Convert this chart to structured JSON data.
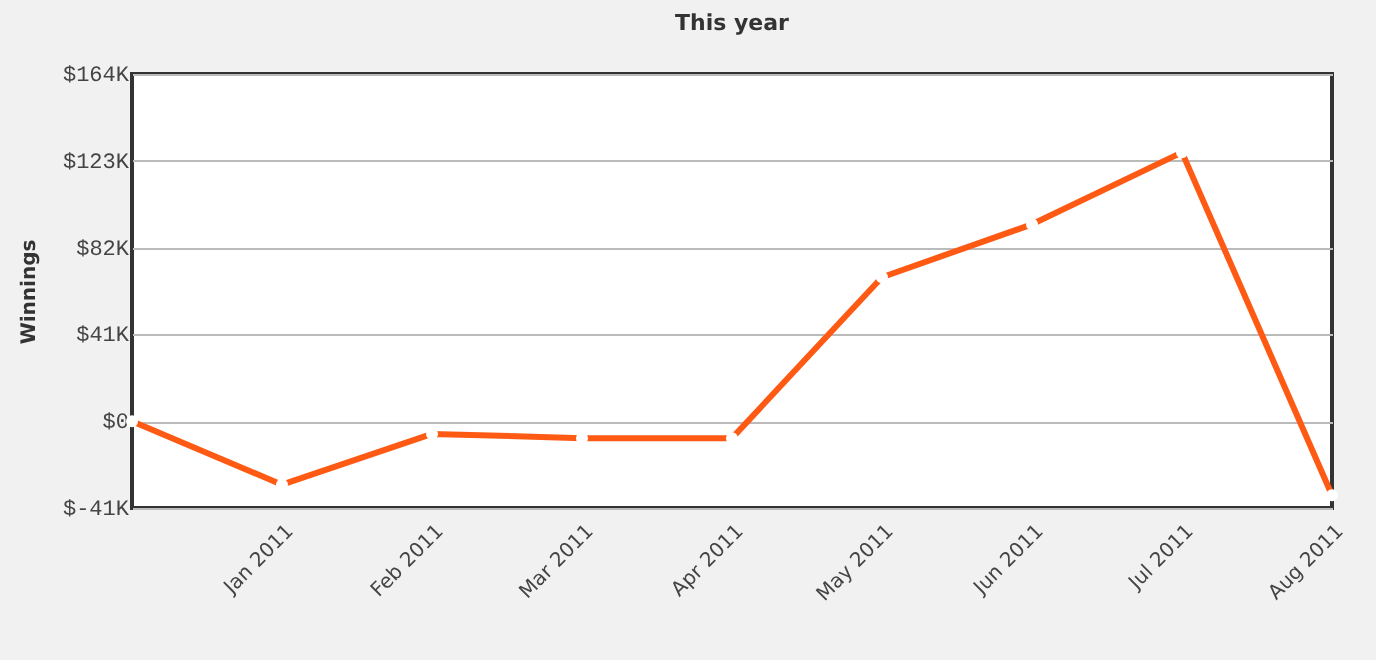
{
  "chart_data": {
    "type": "line",
    "title": "This year",
    "ylabel": "Winnings",
    "categories": [
      null,
      "Jan 2011",
      "Feb 2011",
      "Mar 2011",
      "Apr 2011",
      "May 2011",
      "Jun 2011",
      "Jul 2011",
      "Aug 2011"
    ],
    "series": [
      {
        "color": "#ff5a14",
        "values": [
          0,
          -30,
          -6,
          -8,
          -8,
          68,
          93,
          127,
          -35
        ]
      }
    ],
    "ylim": [
      -41,
      164
    ],
    "yticks": [
      {
        "value": -41,
        "label": "$-41K"
      },
      {
        "value": 0,
        "label": "$0"
      },
      {
        "value": 41,
        "label": "$41K"
      },
      {
        "value": 82,
        "label": "$82K"
      },
      {
        "value": 123,
        "label": "$123K"
      },
      {
        "value": 164,
        "label": "$164K"
      }
    ],
    "grid": "y",
    "marker": "circle",
    "legend": false
  }
}
